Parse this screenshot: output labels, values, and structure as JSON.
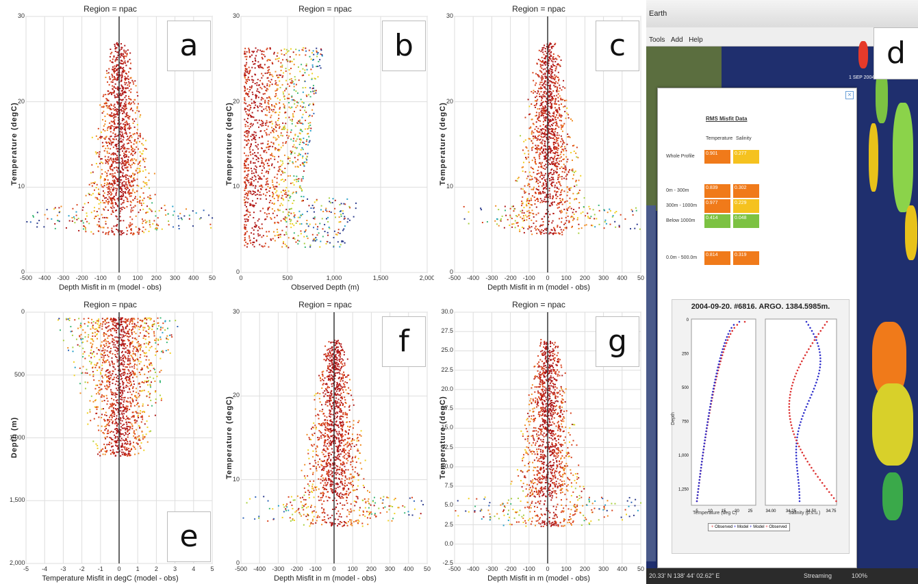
{
  "panels": [
    {
      "id": "a",
      "letter": "a",
      "title": "Region = npac",
      "xlabel": "Depth Misfit in m (model - obs)",
      "ylabel": "Temperature (degC)",
      "xticks": [
        "-500",
        "-400",
        "-300",
        "-200",
        "-100",
        "0",
        "100",
        "200",
        "300",
        "400",
        "50"
      ],
      "yticks": [
        "30",
        "20",
        "10",
        "0"
      ]
    },
    {
      "id": "b",
      "letter": "b",
      "title": "Region = npac",
      "xlabel": "Observed Depth (m)",
      "ylabel": "Temperature (degC)",
      "xticks": [
        "0",
        "500",
        "1,000",
        "1,500",
        "2,000"
      ],
      "yticks": [
        "30",
        "20",
        "10",
        "0"
      ]
    },
    {
      "id": "c",
      "letter": "c",
      "title": "Region = npac",
      "xlabel": "Depth Misfit in m (model - obs)",
      "ylabel": "Temperature (degC)",
      "xticks": [
        "-500",
        "-400",
        "-300",
        "-200",
        "-100",
        "0",
        "100",
        "200",
        "300",
        "400",
        "50"
      ],
      "yticks": [
        "30",
        "20",
        "10",
        "0"
      ]
    },
    {
      "id": "e",
      "letter": "e",
      "title": "Region = npac",
      "xlabel": "Temperature Misfit in degC (model - obs)",
      "ylabel": "Depth (m)",
      "xticks": [
        "-5",
        "-4",
        "-3",
        "-2",
        "-1",
        "0",
        "1",
        "2",
        "3",
        "4",
        "5"
      ],
      "yticks": [
        "0",
        "500",
        "1,000",
        "1,500",
        "2,000"
      ]
    },
    {
      "id": "f",
      "letter": "f",
      "title": "Region = npac",
      "xlabel": "Depth Misfit in m (model - obs)",
      "ylabel": "Temperature (degC)",
      "xticks": [
        "-500",
        "-400",
        "-300",
        "-200",
        "-100",
        "0",
        "100",
        "200",
        "300",
        "400",
        "50"
      ],
      "yticks": [
        "30",
        "20",
        "10",
        "0"
      ]
    },
    {
      "id": "g",
      "letter": "g",
      "title": "Region = npac",
      "xlabel": "Depth Misfit in m (model - obs)",
      "ylabel": "Temperature (degC)",
      "xticks": [
        "-500",
        "-400",
        "-300",
        "-200",
        "-100",
        "0",
        "100",
        "200",
        "300",
        "400",
        "50"
      ],
      "yticks": [
        "30.0",
        "27.5",
        "25.0",
        "22.5",
        "20.0",
        "17.5",
        "15.0",
        "12.5",
        "10.0",
        "7.5",
        "5.0",
        "2.5",
        "0.0",
        "-2.5"
      ]
    }
  ],
  "earth": {
    "letter": "d",
    "title": "Earth",
    "menu": [
      "Tools",
      "Add",
      "Help"
    ],
    "map_date": "1 SEP 2004",
    "popup": {
      "heading": "RMS Misfit Data",
      "col_temperature": "Temperature",
      "col_salinity": "Salinity",
      "rows": [
        {
          "label": "Whole Profile",
          "temp": "0.901",
          "sal": "0.277",
          "temp_color": "#f07a1a",
          "sal_color": "#f5c21f"
        },
        {
          "label": "0m - 300m",
          "temp": "0.839",
          "sal": "0.302",
          "temp_color": "#f07a1a",
          "sal_color": "#f07a1a"
        },
        {
          "label": "300m - 1000m",
          "temp": "0.977",
          "sal": "0.229",
          "temp_color": "#f07a1a",
          "sal_color": "#f5c21f"
        },
        {
          "label": "Below 1000m",
          "temp": "0.414",
          "sal": "0.048",
          "temp_color": "#7cc242",
          "sal_color": "#7cc242"
        },
        {
          "label": "0.0m - 500.0m",
          "temp": "0.814",
          "sal": "0.319",
          "temp_color": "#f07a1a",
          "sal_color": "#f07a1a"
        }
      ],
      "profile_title": "2004-09-20. #6816. ARGO. 1384.5985m.",
      "depth_label": "Depth",
      "temp_axis_label": "Temperature (deg C)",
      "sal_axis_label": "Salinity (p.s.u.)",
      "depth_ticks": [
        "0",
        "250",
        "500",
        "750",
        "1,000",
        "1,250"
      ],
      "temp_ticks": [
        "5",
        "10",
        "15",
        "20",
        "25"
      ],
      "sal_ticks": [
        "34.00",
        "34.25",
        "34.50",
        "34.75"
      ],
      "legend": [
        "Observed",
        "Model",
        "Model",
        "Observed"
      ]
    },
    "status": {
      "coords": "20.33' N 138' 44' 02.62\" E",
      "streaming": "Streaming",
      "zoom": "100%"
    }
  }
}
